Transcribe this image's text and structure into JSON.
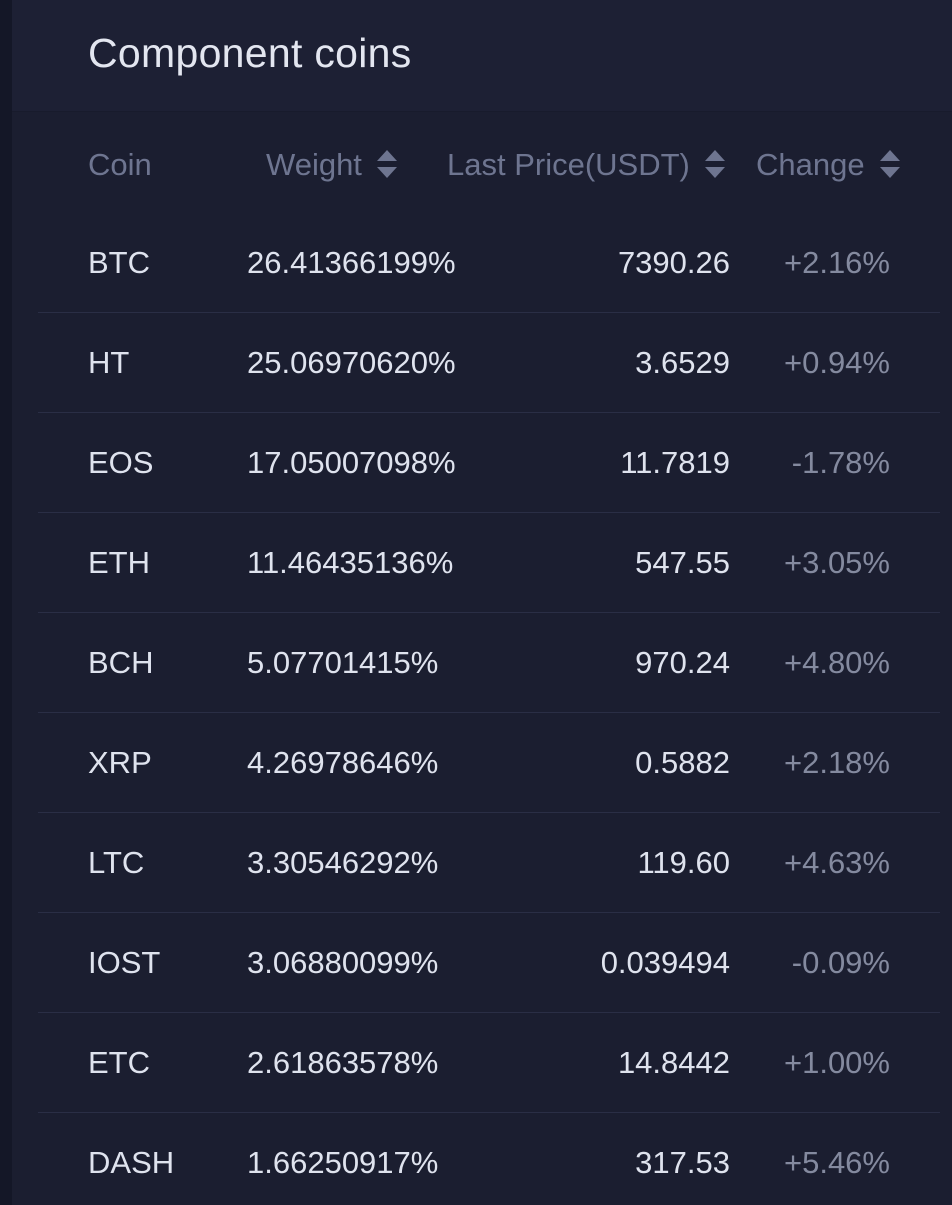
{
  "panel": {
    "title": "Component coins"
  },
  "table": {
    "columns": {
      "coin": "Coin",
      "weight": "Weight",
      "price": "Last Price(USDT)",
      "change": "Change"
    },
    "rows": [
      {
        "coin": "BTC",
        "weight": "26.41366199%",
        "price": "7390.26",
        "change": "+2.16%"
      },
      {
        "coin": "HT",
        "weight": "25.06970620%",
        "price": "3.6529",
        "change": "+0.94%"
      },
      {
        "coin": "EOS",
        "weight": "17.05007098%",
        "price": "11.7819",
        "change": "-1.78%"
      },
      {
        "coin": "ETH",
        "weight": "11.46435136%",
        "price": "547.55",
        "change": "+3.05%"
      },
      {
        "coin": "BCH",
        "weight": "5.07701415%",
        "price": "970.24",
        "change": "+4.80%"
      },
      {
        "coin": "XRP",
        "weight": "4.26978646%",
        "price": "0.5882",
        "change": "+2.18%"
      },
      {
        "coin": "LTC",
        "weight": "3.30546292%",
        "price": "119.60",
        "change": "+4.63%"
      },
      {
        "coin": "IOST",
        "weight": "3.06880099%",
        "price": "0.039494",
        "change": "-0.09%"
      },
      {
        "coin": "ETC",
        "weight": "2.61863578%",
        "price": "14.8442",
        "change": "+1.00%"
      },
      {
        "coin": "DASH",
        "weight": "1.66250917%",
        "price": "317.53",
        "change": "+5.46%"
      }
    ]
  },
  "icons": {
    "sort": "sort-arrows-icon"
  },
  "colors": {
    "background": "#1b1e30",
    "text_primary": "#dfe3ee",
    "text_muted": "#848a9f",
    "header_text": "#6e7590"
  }
}
